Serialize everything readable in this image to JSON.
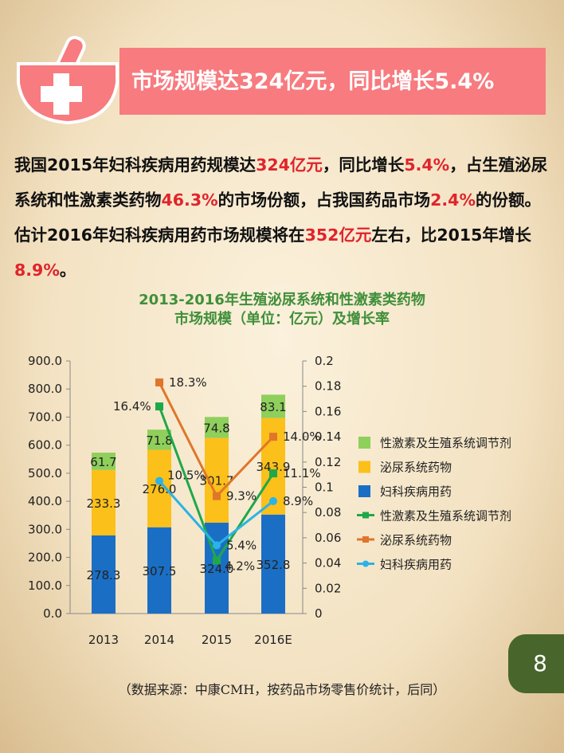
{
  "banner": {
    "title": "市场规模达324亿元，同比增长5.4%"
  },
  "paragraph": [
    {
      "t": "我国2015年妇科疾病用药规模达",
      "r": false
    },
    {
      "t": "324亿元",
      "r": true
    },
    {
      "t": "，同比增长",
      "r": false
    },
    {
      "t": "5.4%",
      "r": true
    },
    {
      "t": "，占生殖泌尿系统和性激素类药物",
      "r": false
    },
    {
      "t": "46.3%",
      "r": true
    },
    {
      "t": "的市场份额，占我国药品市场",
      "r": false
    },
    {
      "t": "2.4%",
      "r": true
    },
    {
      "t": "的份额。估计2016年妇科疾病用药市场规模将在",
      "r": false
    },
    {
      "t": "352亿元",
      "r": true
    },
    {
      "t": "左右，比2015年增长",
      "r": false
    },
    {
      "t": "8.9%",
      "r": true
    },
    {
      "t": "。",
      "r": false
    }
  ],
  "chart_data": {
    "type": "bar+line",
    "title_line1": "2013-2016年生殖泌尿系统和性激素类药物",
    "title_line2": "市场规模（单位：亿元）及增长率",
    "categories": [
      "2013",
      "2014",
      "2015",
      "2016E"
    ],
    "ylim": [
      0,
      900
    ],
    "y2lim": [
      0,
      0.2
    ],
    "yticks": [
      "0.0",
      "100.0",
      "200.0",
      "300.0",
      "400.0",
      "500.0",
      "600.0",
      "700.0",
      "800.0",
      "900.0"
    ],
    "y2ticks": [
      "0",
      "0.02",
      "0.04",
      "0.06",
      "0.08",
      "0.1",
      "0.12",
      "0.14",
      "0.16",
      "0.18",
      "0.2"
    ],
    "bars": [
      {
        "name": "妇科疾病用药",
        "color": "#1a6fc4",
        "values": [
          278.3,
          307.5,
          324.0,
          352.8
        ],
        "labels": [
          "278.3",
          "307.5",
          "324.0",
          "352.8"
        ]
      },
      {
        "name": "泌尿系统药物",
        "color": "#fbc01a",
        "values": [
          233.3,
          276.0,
          301.7,
          343.9
        ],
        "labels": [
          "233.3",
          "276.0",
          "301.7",
          "343.9"
        ]
      },
      {
        "name": "性激素及生殖系统调节剂",
        "color": "#8fcf5c",
        "values": [
          61.7,
          71.8,
          74.8,
          83.1
        ],
        "labels": [
          "61.7",
          "71.8",
          "74.8",
          "83.1"
        ]
      }
    ],
    "lines": [
      {
        "name": "性激素及生殖系统调节剂",
        "color": "#1fa84a",
        "marker": "square",
        "values": [
          null,
          0.164,
          0.042,
          0.111
        ],
        "labels": [
          "",
          "16.4%",
          "4.2%",
          "11.1%"
        ]
      },
      {
        "name": "泌尿系统药物",
        "color": "#e0762a",
        "marker": "square",
        "values": [
          null,
          0.183,
          0.093,
          0.14
        ],
        "labels": [
          "",
          "18.3%",
          "9.3%",
          "14.0%"
        ]
      },
      {
        "name": "妇科疾病用药",
        "color": "#2ab3e6",
        "marker": "circle",
        "values": [
          null,
          0.105,
          0.054,
          0.089
        ],
        "labels": [
          "",
          "10.5%",
          "5.4%",
          "8.9%"
        ]
      }
    ],
    "legend_position": "right"
  },
  "page_number": "8",
  "footnote": "（数据来源：中康CMH，按药品市场零售价统计，后同）"
}
